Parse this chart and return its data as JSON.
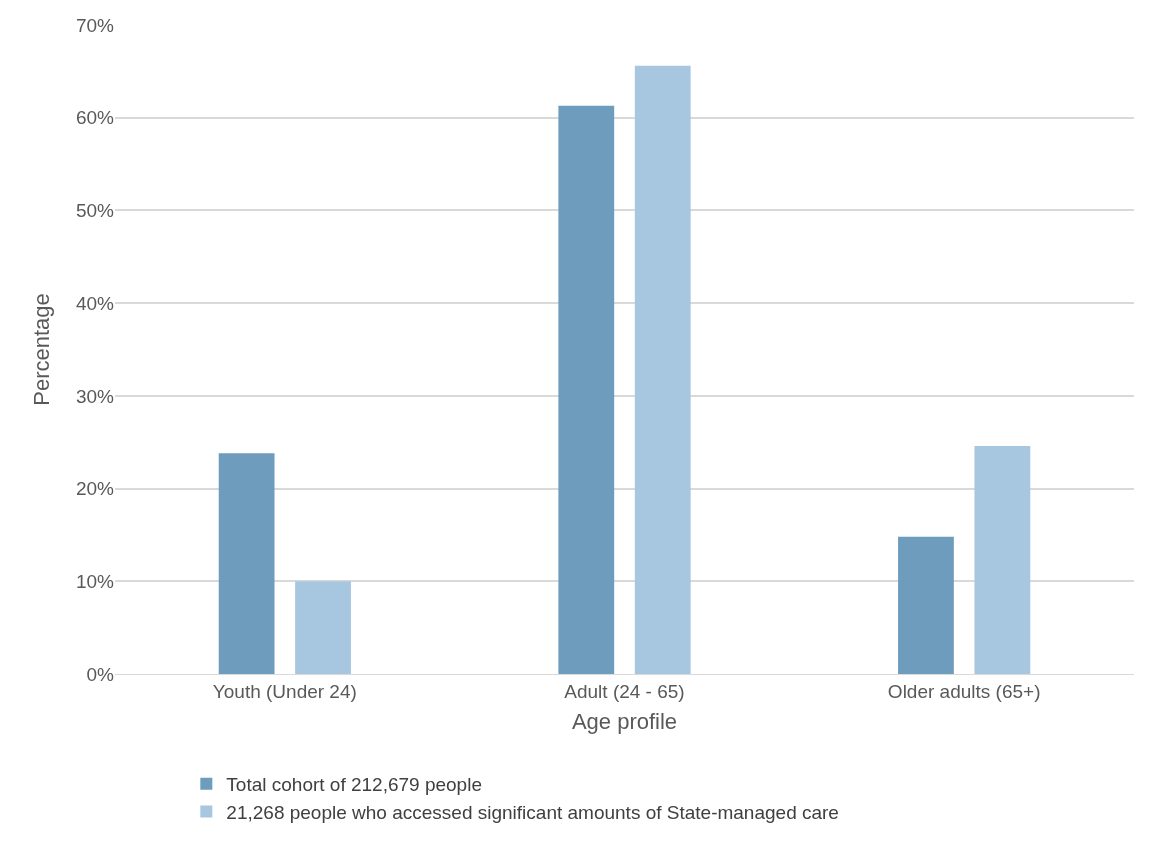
{
  "chart_data": {
    "type": "bar",
    "xlabel": "Age profile",
    "ylabel": "Percentage",
    "categories": [
      "Youth (Under 24)",
      "Adult (24 - 65)",
      "Older adults (65+)"
    ],
    "series": [
      {
        "name": "Total cohort of 212,679 people",
        "color": "#6d9cbd",
        "values": [
          23.8,
          61.3,
          14.8
        ]
      },
      {
        "name": "21,268 people who accessed significant amounts of State-managed care",
        "color": "#a7c6df",
        "values": [
          10.0,
          65.6,
          24.6
        ]
      }
    ],
    "ylim": [
      0,
      70
    ],
    "yticks": [
      {
        "value": 0,
        "label": "0%"
      },
      {
        "value": 10,
        "label": "10%"
      },
      {
        "value": 20,
        "label": "20%"
      },
      {
        "value": 30,
        "label": "30%"
      },
      {
        "value": 40,
        "label": "40%"
      },
      {
        "value": 50,
        "label": "50%"
      },
      {
        "value": 60,
        "label": "60%"
      },
      {
        "value": 70,
        "label": "70%"
      }
    ],
    "grid": "y",
    "legend": "bottom"
  }
}
